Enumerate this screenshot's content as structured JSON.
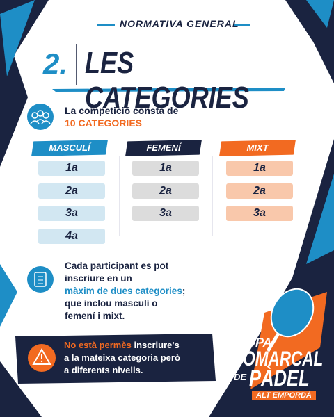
{
  "header": {
    "kicker": "NORMATIVA GENERAL",
    "number": "2.",
    "title": "LES CATEGORIES"
  },
  "intro": {
    "text": "La competició consta de",
    "highlight": "10 CATEGORIES"
  },
  "columns": [
    {
      "name": "MASCULÍ",
      "items": [
        "1a",
        "2a",
        "3a",
        "4a"
      ]
    },
    {
      "name": "FEMENÍ",
      "items": [
        "1a",
        "2a",
        "3a"
      ]
    },
    {
      "name": "MIXT",
      "items": [
        "1a",
        "2a",
        "3a"
      ]
    }
  ],
  "rule1": {
    "lines": [
      "Cada participant es pot",
      "inscriure en un"
    ],
    "highlight": "màxim de dues categories",
    "after": ";",
    "lines_end": [
      "que inclou masculí o",
      "femení i mixt."
    ]
  },
  "rule2": {
    "highlight": "No està permès",
    "first": "inscriure's",
    "lines": [
      "a la mateixa categoria però",
      "a diferents nivells."
    ]
  },
  "logo": {
    "copa": "COPA",
    "comarcal": "COMARCAL",
    "de": "DE",
    "padel": "PÀDEL",
    "region": "ALT EMPORDÀ"
  }
}
